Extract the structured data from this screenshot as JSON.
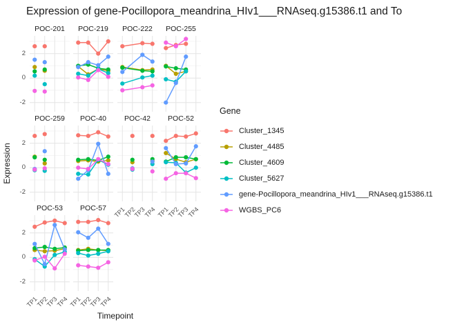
{
  "title": "Expression of gene-Pocillopora_meandrina_HIv1___RNAseq.g15386.t1 and To",
  "axes": {
    "x_title": "Timepoint",
    "y_title": "Expression",
    "x_tick_labels": [
      "TP1",
      "TP2",
      "TP3",
      "TP4"
    ],
    "y_tick_labels": [
      "-2",
      "0",
      "2"
    ]
  },
  "legend": {
    "title": "Gene",
    "entries": [
      {
        "label": "Cluster_1345",
        "color": "#F8766D"
      },
      {
        "label": "Cluster_4485",
        "color": "#B79F00"
      },
      {
        "label": "Cluster_4609",
        "color": "#00BA38"
      },
      {
        "label": "Cluster_5627",
        "color": "#00BFC4"
      },
      {
        "label": "gene-Pocillopora_meandrina_HIv1___RNAseq.g15386.t1",
        "color": "#619CFF"
      },
      {
        "label": "WGBS_PC6",
        "color": "#F564E3"
      }
    ]
  },
  "chart_data": {
    "type": "line",
    "x": [
      "TP1",
      "TP2",
      "TP3",
      "TP4"
    ],
    "xlabel": "Timepoint",
    "ylabel": "Expression",
    "ylim": [
      -2.75,
      3.45
    ],
    "y_ticks": [
      -2,
      0,
      2
    ],
    "y_minor_ticks": [
      -1,
      1,
      3
    ],
    "grid": true,
    "legend_position": "right",
    "series": [
      {
        "name": "Cluster_1345",
        "color": "#F8766D"
      },
      {
        "name": "Cluster_4485",
        "color": "#B79F00"
      },
      {
        "name": "Cluster_4609",
        "color": "#00BA38"
      },
      {
        "name": "Cluster_5627",
        "color": "#00BFC4"
      },
      {
        "name": "gene-Pocillopora_meandrina_HIv1___RNAseq.g15386.t1",
        "color": "#619CFF"
      },
      {
        "name": "WGBS_PC6",
        "color": "#F564E3"
      }
    ],
    "facets": [
      {
        "name": "POC-201",
        "lines": false,
        "values": [
          [
            2.6,
            2.6,
            null,
            null
          ],
          [
            0.9,
            0.6,
            null,
            null
          ],
          [
            0.55,
            0.7,
            null,
            null
          ],
          [
            0.2,
            -0.5,
            null,
            null
          ],
          [
            1.5,
            1.3,
            null,
            null
          ],
          [
            -1.05,
            -1.1,
            null,
            null
          ]
        ]
      },
      {
        "name": "POC-219",
        "lines": true,
        "values": [
          [
            2.9,
            2.9,
            2.0,
            3.0
          ],
          [
            0.95,
            0.3,
            0.75,
            0.6
          ],
          [
            1.0,
            1.1,
            0.8,
            0.7
          ],
          [
            0.35,
            0.2,
            0.75,
            0.4
          ],
          [
            0.9,
            1.3,
            1.05,
            1.75
          ],
          [
            0.05,
            -0.15,
            0.65,
            0.1
          ]
        ]
      },
      {
        "name": "POC-222",
        "lines": true,
        "values": [
          [
            2.6,
            null,
            2.85,
            2.8
          ],
          [
            0.9,
            null,
            0.65,
            0.7
          ],
          [
            0.85,
            null,
            0.6,
            0.55
          ],
          [
            -0.45,
            null,
            0.05,
            0.2
          ],
          [
            0.5,
            null,
            1.9,
            1.35
          ],
          [
            -1.0,
            null,
            -0.75,
            -0.6
          ]
        ]
      },
      {
        "name": "POC-255",
        "lines": true,
        "values": [
          [
            2.45,
            2.7,
            2.8,
            null
          ],
          [
            1.0,
            0.35,
            0.55,
            null
          ],
          [
            0.95,
            0.8,
            0.7,
            null
          ],
          [
            -0.1,
            -0.3,
            0.55,
            null
          ],
          [
            -2.0,
            -0.4,
            1.75,
            null
          ],
          [
            2.9,
            2.6,
            3.2,
            null
          ]
        ]
      },
      {
        "name": "POC-259",
        "lines": false,
        "values": [
          [
            2.6,
            2.75,
            null,
            null
          ],
          [
            0.9,
            0.35,
            null,
            null
          ],
          [
            0.85,
            0.65,
            null,
            null
          ],
          [
            -0.2,
            -0.25,
            null,
            null
          ],
          [
            -0.1,
            1.35,
            null,
            null
          ],
          [
            -0.15,
            -0.05,
            null,
            null
          ]
        ]
      },
      {
        "name": "POC-40",
        "lines": true,
        "values": [
          [
            2.65,
            2.6,
            2.9,
            2.55
          ],
          [
            0.55,
            0.6,
            0.5,
            0.6
          ],
          [
            0.65,
            0.7,
            0.6,
            0.9
          ],
          [
            -0.5,
            -0.55,
            0.65,
            0.25
          ],
          [
            -0.9,
            -0.2,
            1.95,
            -0.5
          ],
          [
            0.0,
            -0.1,
            0.7,
            0.3
          ]
        ]
      },
      {
        "name": "POC-42",
        "lines": false,
        "values": [
          [
            null,
            2.6,
            null,
            2.6
          ],
          [
            null,
            0.45,
            null,
            0.55
          ],
          [
            null,
            0.65,
            null,
            0.7
          ],
          [
            null,
            -0.15,
            null,
            0.3
          ],
          [
            null,
            -0.05,
            null,
            0.5
          ],
          [
            null,
            -0.1,
            null,
            -0.3
          ]
        ]
      },
      {
        "name": "POC-52",
        "lines": true,
        "values": [
          [
            2.2,
            2.6,
            2.55,
            2.8
          ],
          [
            1.2,
            0.7,
            0.45,
            0.7
          ],
          [
            0.5,
            0.85,
            0.85,
            0.7
          ],
          [
            0.45,
            0.4,
            -0.4,
            0.0
          ],
          [
            1.6,
            0.3,
            0.35,
            1.75
          ],
          [
            -0.9,
            -0.45,
            -0.45,
            -0.85
          ]
        ]
      },
      {
        "name": "POC-53",
        "lines": true,
        "values": [
          [
            2.5,
            2.85,
            3.0,
            2.8
          ],
          [
            0.6,
            0.5,
            0.55,
            0.7
          ],
          [
            0.75,
            0.85,
            0.7,
            0.8
          ],
          [
            -0.15,
            -0.75,
            0.2,
            0.45
          ],
          [
            1.1,
            -0.55,
            2.65,
            0.65
          ],
          [
            -0.25,
            0.05,
            -0.9,
            0.3
          ]
        ]
      },
      {
        "name": "POC-57",
        "lines": true,
        "values": [
          [
            2.9,
            2.9,
            3.05,
            2.8
          ],
          [
            0.6,
            0.7,
            0.6,
            0.55
          ],
          [
            0.55,
            0.6,
            0.6,
            0.6
          ],
          [
            0.35,
            0.15,
            0.3,
            0.5
          ],
          [
            2.05,
            1.6,
            2.35,
            1.1
          ],
          [
            -0.65,
            -0.75,
            -0.85,
            -0.4
          ]
        ]
      }
    ]
  }
}
